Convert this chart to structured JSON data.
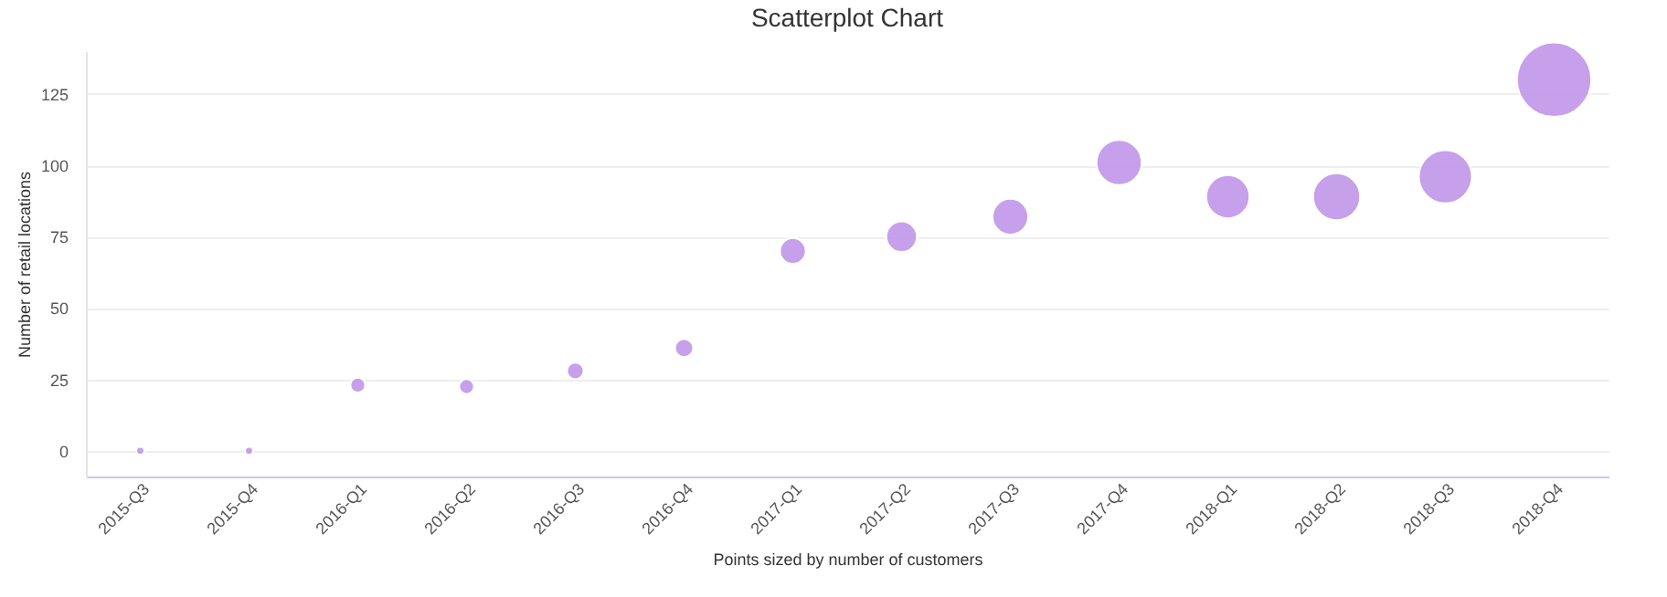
{
  "chart_data": {
    "type": "bubble",
    "title": "Scatterplot Chart",
    "xlabel": "Points sized by number of customers",
    "ylabel": "Number of retail locations",
    "categories": [
      "2015-Q3",
      "2015-Q4",
      "2016-Q1",
      "2016-Q2",
      "2016-Q3",
      "2016-Q4",
      "2017-Q1",
      "2017-Q2",
      "2017-Q3",
      "2017-Q4",
      "2018-Q1",
      "2018-Q2",
      "2018-Q3",
      "2018-Q4"
    ],
    "series": [
      {
        "color": "#c39bea",
        "values": [
          0,
          0,
          23,
          22.5,
          28,
          36,
          70,
          75,
          82,
          101,
          89,
          89,
          96,
          130
        ],
        "sizes": [
          0.012,
          0.012,
          0.04,
          0.04,
          0.05,
          0.06,
          0.12,
          0.17,
          0.23,
          0.37,
          0.34,
          0.4,
          0.51,
          1
        ]
      }
    ],
    "ylim": [
      -9,
      140
    ],
    "yticks": [
      0,
      25,
      50,
      75,
      100,
      125
    ],
    "grid": "y",
    "marker": "circle"
  }
}
